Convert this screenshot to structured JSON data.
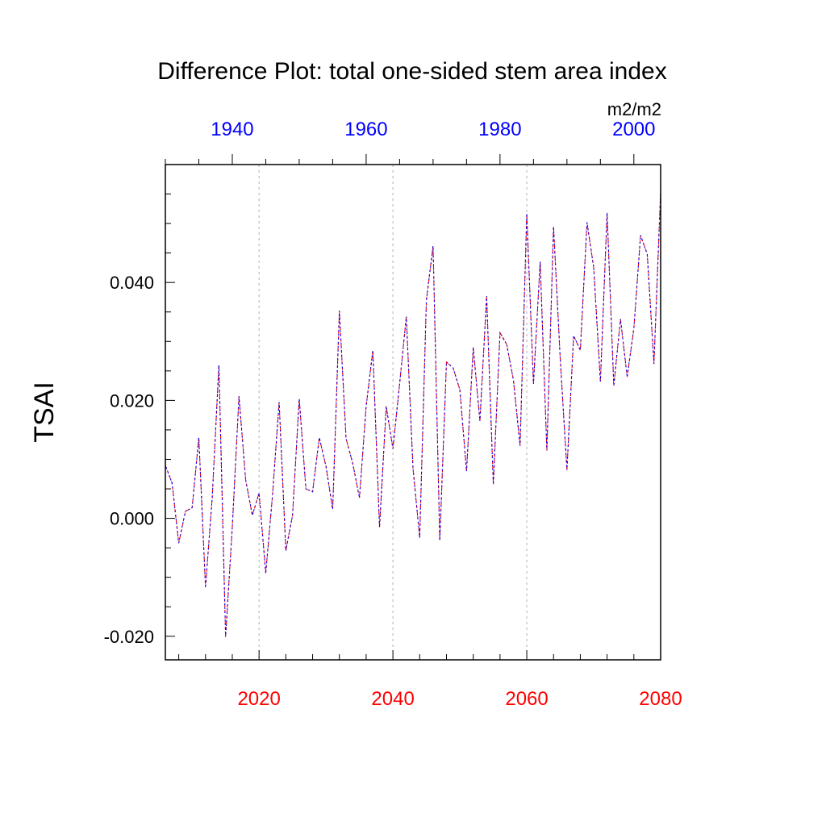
{
  "chart_data": {
    "type": "line",
    "title": "Difference Plot: total one-sided stem area index",
    "units": "m2/m2",
    "ylabel": "TSAI",
    "ylim": [
      -0.024,
      0.06
    ],
    "yticks": [
      {
        "value": -0.02,
        "label": "-0.020"
      },
      {
        "value": 0.0,
        "label": "0.000"
      },
      {
        "value": 0.02,
        "label": "0.020"
      },
      {
        "value": 0.04,
        "label": "0.040"
      }
    ],
    "x_bottom": {
      "range": [
        2006,
        2080
      ],
      "ticks": [
        2020,
        2040,
        2060,
        2080
      ],
      "color": "#ff0000",
      "grid": true
    },
    "x_top": {
      "range": [
        1930,
        2004
      ],
      "ticks": [
        1940,
        1960,
        1980,
        2000
      ],
      "color": "#0000ff"
    },
    "x": [
      2006,
      2007,
      2008,
      2009,
      2010,
      2011,
      2012,
      2013,
      2014,
      2015,
      2016,
      2017,
      2018,
      2019,
      2020,
      2021,
      2022,
      2023,
      2024,
      2025,
      2026,
      2027,
      2028,
      2029,
      2030,
      2031,
      2032,
      2033,
      2034,
      2035,
      2036,
      2037,
      2038,
      2039,
      2040,
      2041,
      2042,
      2043,
      2044,
      2045,
      2046,
      2047,
      2048,
      2049,
      2050,
      2051,
      2052,
      2053,
      2054,
      2055,
      2056,
      2057,
      2058,
      2059,
      2060,
      2061,
      2062,
      2063,
      2064,
      2065,
      2066,
      2067,
      2068,
      2069,
      2070,
      2071,
      2072,
      2073,
      2074,
      2075,
      2076,
      2077,
      2078,
      2079,
      2080
    ],
    "series": [
      {
        "color": "#ff0000",
        "dashed": true,
        "values": [
          0.009,
          0.006,
          -0.0042,
          0.0012,
          0.0018,
          0.0137,
          -0.0117,
          0.0035,
          0.026,
          -0.0201,
          -0.0015,
          0.0207,
          0.0065,
          0.0005,
          0.0043,
          -0.0093,
          0.0038,
          0.0197,
          -0.0055,
          0.0005,
          0.0203,
          0.005,
          0.0045,
          0.0137,
          0.0088,
          0.0015,
          0.0352,
          0.0135,
          0.0093,
          0.0035,
          0.019,
          0.0285,
          -0.0015,
          0.019,
          0.0118,
          0.0228,
          0.0342,
          0.0085,
          -0.0033,
          0.037,
          0.0462,
          -0.0038,
          0.0265,
          0.0255,
          0.0218,
          0.008,
          0.029,
          0.0165,
          0.0377,
          0.0058,
          0.0315,
          0.0295,
          0.0235,
          0.0123,
          0.0517,
          0.0228,
          0.0435,
          0.0115,
          0.0495,
          0.027,
          0.0082,
          0.031,
          0.0285,
          0.0502,
          0.0425,
          0.0232,
          0.0518,
          0.0225,
          0.0338,
          0.024,
          0.0322,
          0.048,
          0.0448,
          0.0262,
          0.0555
        ]
      },
      {
        "color": "#0000ff",
        "dashed": true,
        "values": [
          0.009,
          0.006,
          -0.0042,
          0.0012,
          0.0018,
          0.0137,
          -0.0117,
          0.0035,
          0.026,
          -0.0201,
          -0.0015,
          0.0207,
          0.0065,
          0.0005,
          0.0043,
          -0.0093,
          0.0038,
          0.0197,
          -0.0055,
          0.0005,
          0.0203,
          0.005,
          0.0045,
          0.0137,
          0.0088,
          0.0015,
          0.0352,
          0.0135,
          0.0093,
          0.0035,
          0.019,
          0.0285,
          -0.0015,
          0.019,
          0.0118,
          0.0228,
          0.0342,
          0.0085,
          -0.0033,
          0.037,
          0.0462,
          -0.0038,
          0.0265,
          0.0255,
          0.0218,
          0.008,
          0.029,
          0.0165,
          0.0377,
          0.0058,
          0.0315,
          0.0295,
          0.0235,
          0.0123,
          0.0517,
          0.0228,
          0.0435,
          0.0115,
          0.0495,
          0.027,
          0.0082,
          0.031,
          0.0285,
          0.0502,
          0.0425,
          0.0232,
          0.0518,
          0.0225,
          0.0338,
          0.024,
          0.0322,
          0.048,
          0.0448,
          0.0262,
          0.0555
        ]
      }
    ]
  }
}
